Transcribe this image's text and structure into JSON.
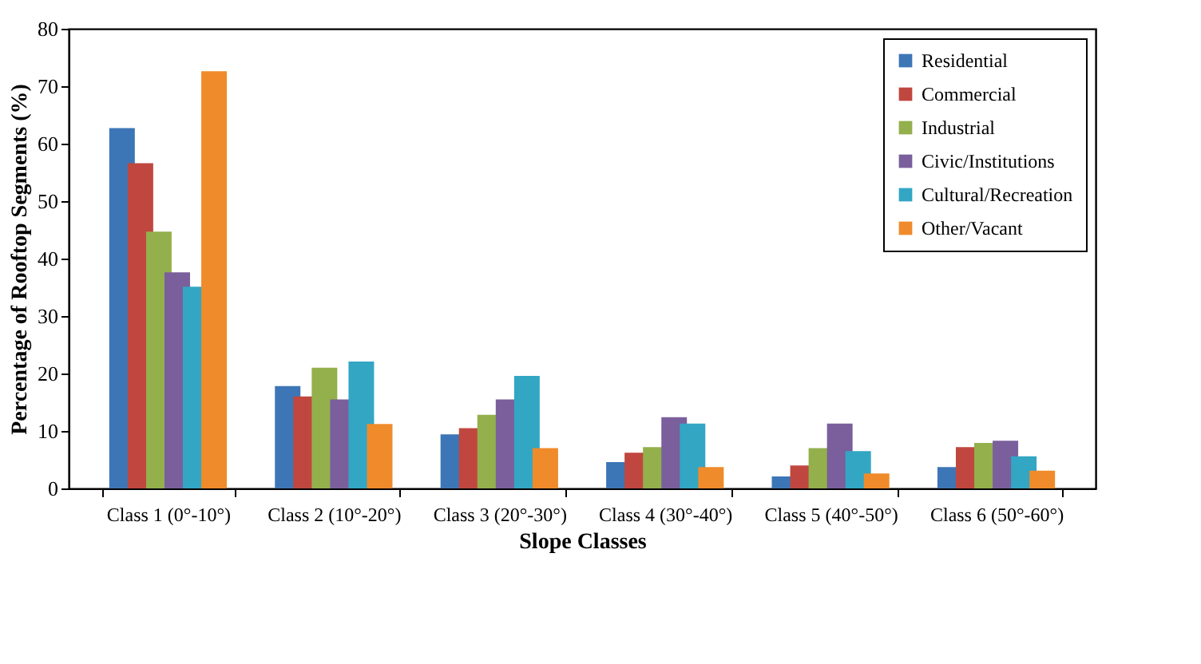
{
  "chart_data": {
    "type": "bar",
    "xlabel": "Slope Classes",
    "ylabel": "Percentage of Rooftop Segments (%)",
    "categories": [
      "Class 1 (0°-10°)",
      "Class 2 (10°-20°)",
      "Class 3 (20°-30°)",
      "Class 4 (30°-40°)",
      "Class 5 (40°-50°)",
      "Class 6 (50°-60°)"
    ],
    "series": [
      {
        "name": "Residential",
        "color": "#3d76b6",
        "values": [
          62.7,
          17.8,
          9.4,
          4.6,
          2.1,
          3.7
        ]
      },
      {
        "name": "Commercial",
        "color": "#c0473f",
        "values": [
          56.6,
          16.0,
          10.5,
          6.2,
          4.0,
          7.2
        ]
      },
      {
        "name": "Industrial",
        "color": "#93b04c",
        "values": [
          44.7,
          21.0,
          12.8,
          7.2,
          7.0,
          7.9
        ]
      },
      {
        "name": "Civic/Institutions",
        "color": "#7a5f9c",
        "values": [
          37.6,
          15.5,
          15.5,
          12.4,
          11.3,
          8.3
        ]
      },
      {
        "name": "Cultural/Recreation",
        "color": "#33a6c4",
        "values": [
          35.1,
          22.1,
          19.6,
          11.3,
          6.5,
          5.6
        ]
      },
      {
        "name": "Other/Vacant",
        "color": "#ef8b2a",
        "values": [
          72.6,
          11.2,
          7.0,
          3.7,
          2.6,
          3.1
        ]
      }
    ],
    "ylim": [
      0,
      80
    ],
    "yticks": [
      0,
      10,
      20,
      30,
      40,
      50,
      60,
      70,
      80
    ],
    "grid": false,
    "legend": "top right"
  }
}
